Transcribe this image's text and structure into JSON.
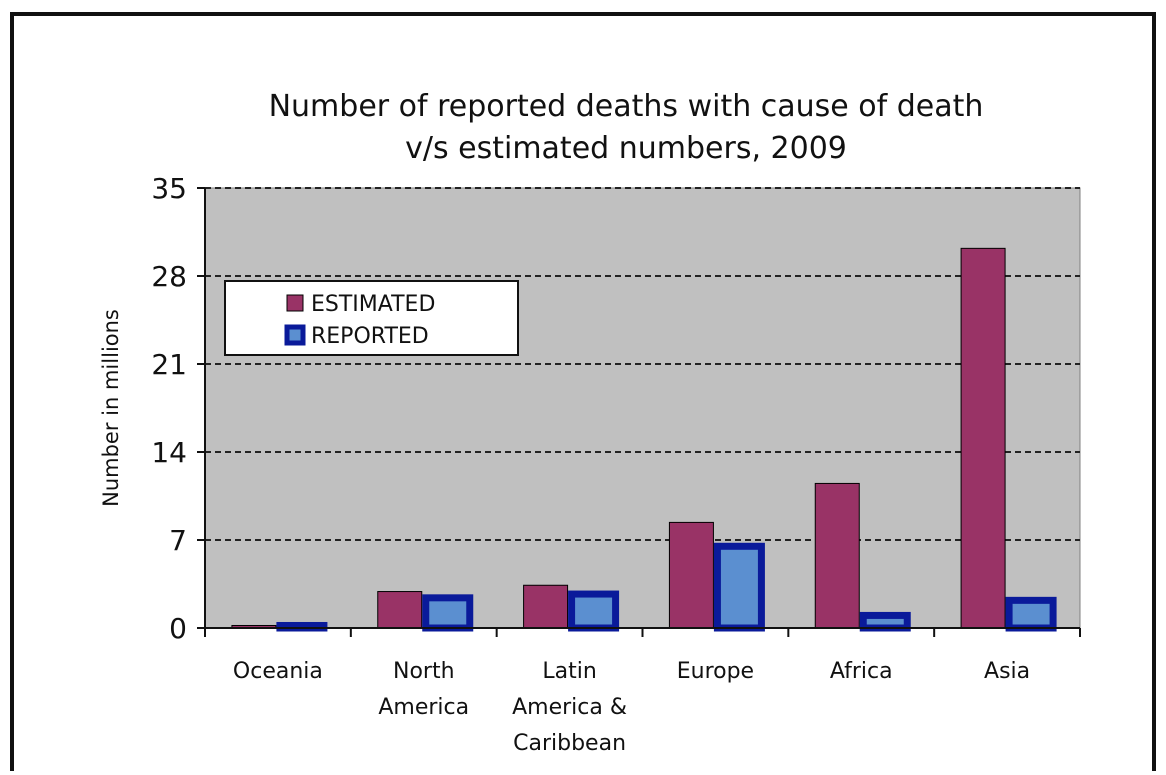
{
  "chart_data": {
    "type": "bar",
    "title": [
      "Number of reported deaths with cause of death",
      "v/s estimated numbers, 2009"
    ],
    "xlabel": "",
    "ylabel": "Number in millions",
    "ylim": [
      0,
      35
    ],
    "yticks": [
      0,
      7,
      14,
      21,
      28,
      35
    ],
    "grid": true,
    "legend_position": "top-left",
    "categories": [
      [
        "Oceania"
      ],
      [
        "North",
        "America"
      ],
      [
        "Latin",
        "America &",
        "Caribbean"
      ],
      [
        "Europe"
      ],
      [
        "Africa"
      ],
      [
        "Asia"
      ]
    ],
    "series": [
      {
        "name": "ESTIMATED",
        "color": "#993366",
        "values": [
          0.2,
          2.9,
          3.4,
          8.4,
          11.5,
          30.2
        ]
      },
      {
        "name": "REPORTED",
        "color": "#5b8fd0",
        "border": "#0a1a9a",
        "values": [
          0.2,
          2.4,
          2.7,
          6.5,
          1.0,
          2.2
        ]
      }
    ]
  }
}
